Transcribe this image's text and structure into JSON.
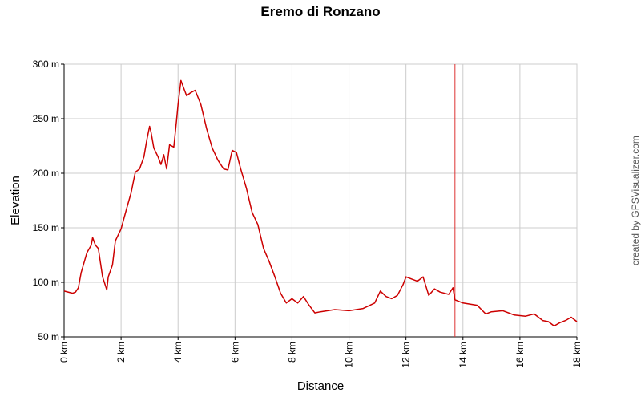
{
  "chart_data": {
    "type": "line",
    "title": "Eremo di Ronzano",
    "x_label": "Distance",
    "y_label": "Elevation",
    "credit": "created by GPSVisualizer.com",
    "xlim": [
      0,
      18
    ],
    "ylim": [
      50,
      300
    ],
    "xticks": [
      {
        "value": 0,
        "label": "0 km"
      },
      {
        "value": 2,
        "label": "2 km"
      },
      {
        "value": 4,
        "label": "4 km"
      },
      {
        "value": 6,
        "label": "6 km"
      },
      {
        "value": 8,
        "label": "8 km"
      },
      {
        "value": 10,
        "label": "10 km"
      },
      {
        "value": 12,
        "label": "12 km"
      },
      {
        "value": 14,
        "label": "14 km"
      },
      {
        "value": 16,
        "label": "16 km"
      },
      {
        "value": 18,
        "label": "18 km"
      }
    ],
    "yticks": [
      {
        "value": 50,
        "label": "50 m"
      },
      {
        "value": 100,
        "label": "100 m"
      },
      {
        "value": 150,
        "label": "150 m"
      },
      {
        "value": 200,
        "label": "200 m"
      },
      {
        "value": 250,
        "label": "250 m"
      },
      {
        "value": 300,
        "label": "300 m"
      }
    ],
    "grid": true,
    "vline": {
      "x": 13.72,
      "color": "#dd3333"
    },
    "x": [
      0,
      0.3,
      0.4,
      0.5,
      0.6,
      0.8,
      0.95,
      1.0,
      1.1,
      1.2,
      1.35,
      1.5,
      1.55,
      1.7,
      1.8,
      2.0,
      2.2,
      2.35,
      2.5,
      2.65,
      2.8,
      2.9,
      3.0,
      3.05,
      3.15,
      3.3,
      3.4,
      3.5,
      3.6,
      3.7,
      3.85,
      3.95,
      4.0,
      4.1,
      4.2,
      4.3,
      4.45,
      4.6,
      4.8,
      5.0,
      5.2,
      5.4,
      5.6,
      5.75,
      5.9,
      6.05,
      6.2,
      6.4,
      6.6,
      6.8,
      7.0,
      7.2,
      7.4,
      7.6,
      7.8,
      8.0,
      8.2,
      8.4,
      8.6,
      8.8,
      9.0,
      9.5,
      10.0,
      10.5,
      10.9,
      11.1,
      11.3,
      11.5,
      11.7,
      11.9,
      12.0,
      12.2,
      12.4,
      12.6,
      12.8,
      13.0,
      13.2,
      13.5,
      13.65,
      13.72,
      14.0,
      14.5,
      14.8,
      15.0,
      15.4,
      15.8,
      16.2,
      16.5,
      16.8,
      17.0,
      17.2,
      17.4,
      17.6,
      17.8,
      18.0
    ],
    "series": [
      {
        "name": "Elevation",
        "color": "#cc0000",
        "values": [
          92,
          90,
          91,
          95,
          109,
          127,
          134,
          141,
          134,
          131,
          105,
          93,
          105,
          116,
          138,
          149,
          168,
          182,
          201,
          204,
          215,
          230,
          243,
          238,
          223,
          215,
          208,
          217,
          204,
          226,
          224,
          249,
          263,
          285,
          278,
          271,
          274,
          276,
          263,
          241,
          223,
          212,
          204,
          203,
          221,
          219,
          204,
          186,
          164,
          153,
          131,
          119,
          105,
          90,
          81,
          85,
          81,
          87,
          79,
          72,
          73,
          75,
          74,
          76,
          81,
          92,
          87,
          85,
          88,
          98,
          105,
          103,
          101,
          105,
          88,
          94,
          91,
          89,
          95,
          84,
          81,
          79,
          71,
          73,
          74,
          70,
          69,
          71,
          65,
          64,
          60,
          63,
          65,
          68,
          64
        ]
      }
    ]
  }
}
